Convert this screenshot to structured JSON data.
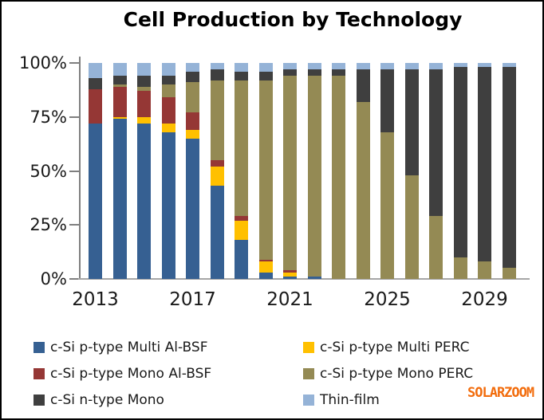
{
  "window": {
    "title": "Cell Production by Technology"
  },
  "watermark": {
    "text": "SOLARZOOM",
    "color": "#F26C0C"
  },
  "chart_data": {
    "type": "bar",
    "stacked": true,
    "percent_stacked": true,
    "title": "Cell Production by Technology",
    "xlabel": "",
    "ylabel": "",
    "ylim": [
      0,
      100
    ],
    "grid": false,
    "legend_position": "bottom",
    "categories": [
      "2013",
      "2014",
      "2015",
      "2016",
      "2017",
      "2018",
      "2019",
      "2020",
      "2021",
      "2022",
      "2023",
      "2024",
      "2025",
      "2026",
      "2027",
      "2028",
      "2029",
      "2030"
    ],
    "x_ticks": [
      {
        "label": "2013",
        "bar_index": 0
      },
      {
        "label": "2017",
        "bar_index": 4
      },
      {
        "label": "2021",
        "bar_index": 8
      },
      {
        "label": "2025",
        "bar_index": 12
      },
      {
        "label": "2029",
        "bar_index": 16
      }
    ],
    "y_ticks": [
      "100%",
      "75%",
      "50%",
      "25%",
      "0%"
    ],
    "series": [
      {
        "name": "c-Si p-type Multi Al-BSF",
        "color": "#366092",
        "values": [
          72,
          74,
          72,
          68,
          65,
          43,
          18,
          3,
          1,
          1,
          0,
          0,
          0,
          0,
          0,
          0,
          0,
          0
        ]
      },
      {
        "name": "c-Si p-type Multi PERC",
        "color": "#FFC000",
        "values": [
          0,
          1,
          3,
          4,
          4,
          9,
          9,
          5,
          2,
          0,
          0,
          0,
          0,
          0,
          0,
          0,
          0,
          0
        ]
      },
      {
        "name": "c-Si p-type Mono Al-BSF",
        "color": "#953735",
        "values": [
          16,
          14,
          12,
          12,
          8,
          3,
          2,
          1,
          1,
          0,
          0,
          0,
          0,
          0,
          0,
          0,
          0,
          0
        ]
      },
      {
        "name": "c-Si p-type Mono PERC",
        "color": "#948A54",
        "values": [
          0,
          1,
          2,
          6,
          14,
          37,
          63,
          83,
          90,
          93,
          94,
          82,
          68,
          48,
          29,
          10,
          8,
          5
        ]
      },
      {
        "name": "c-Si n-type Mono",
        "color": "#3F3F3F",
        "values": [
          5,
          4,
          5,
          4,
          5,
          5,
          4,
          4,
          3,
          3,
          3,
          15,
          29,
          49,
          68,
          88,
          90,
          93
        ]
      },
      {
        "name": "Thin-film",
        "color": "#95B3D7",
        "values": [
          7,
          6,
          6,
          6,
          4,
          3,
          4,
          4,
          3,
          3,
          3,
          3,
          3,
          3,
          3,
          2,
          2,
          2
        ]
      }
    ]
  }
}
